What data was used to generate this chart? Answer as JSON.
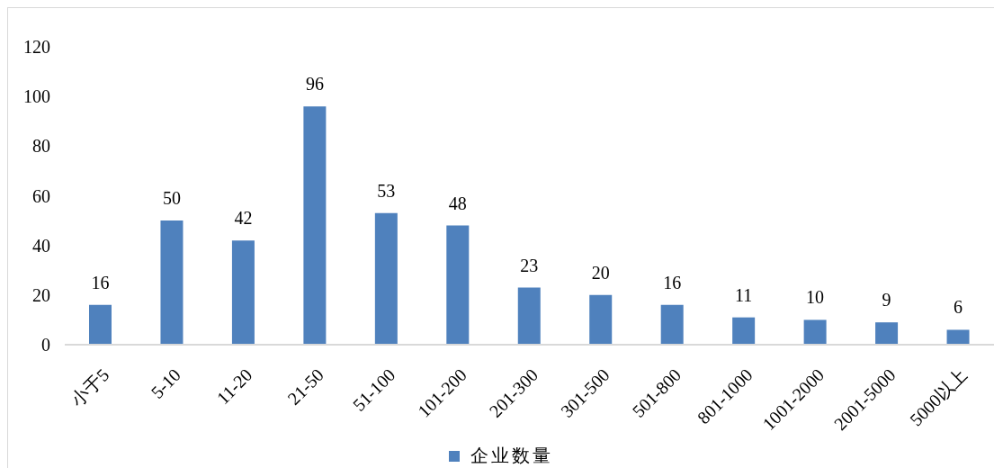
{
  "chart_data": {
    "type": "bar",
    "categories": [
      "小于5",
      "5-10",
      "11-20",
      "21-50",
      "51-100",
      "101-200",
      "201-300",
      "301-500",
      "501-800",
      "801-1000",
      "1001-2000",
      "2001-5000",
      "5000以上"
    ],
    "series": [
      {
        "name": "企业数量",
        "color": "#4f81bd",
        "values": [
          16,
          50,
          42,
          96,
          53,
          48,
          23,
          20,
          16,
          11,
          10,
          9,
          6
        ]
      }
    ],
    "ylim": [
      0,
      120
    ],
    "yticks": [
      0,
      20,
      40,
      60,
      80,
      100,
      120
    ],
    "data_labels": true,
    "legend": "bottom"
  }
}
